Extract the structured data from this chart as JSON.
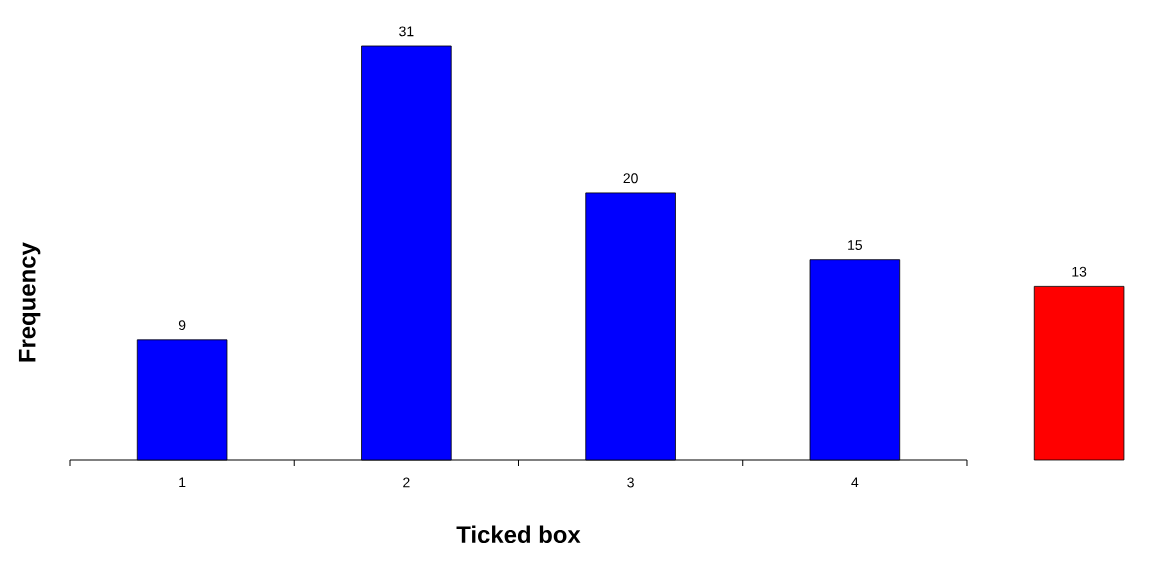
{
  "chart_data": {
    "type": "bar",
    "xlabel": "Ticked box",
    "ylabel": "Frequency",
    "categories": [
      "1",
      "2",
      "3",
      "4",
      null
    ],
    "values": [
      9,
      31,
      20,
      15,
      13
    ],
    "colors": [
      "#0000ff",
      "#0000ff",
      "#0000ff",
      "#0000ff",
      "#ff0000"
    ],
    "data_labels": true
  }
}
